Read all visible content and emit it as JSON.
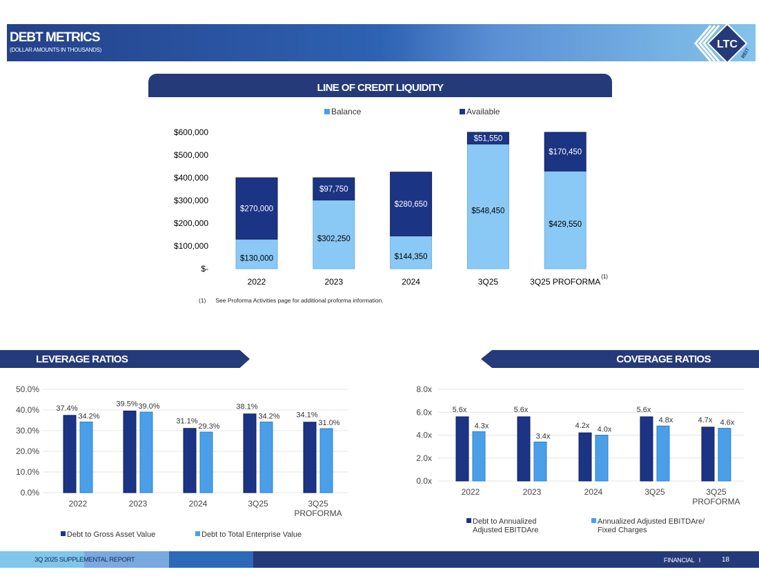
{
  "header": {
    "title": "DEBT METRICS",
    "subtitle": "(DOLLAR AMOUNTS IN THOUSANDS)",
    "logo_text": "LTC",
    "logo_sub": "REIT"
  },
  "footer": {
    "report": "3Q 2025 SUPPLEMENTAL REPORT",
    "section": "FINANCIAL",
    "separator": "I",
    "page": "18"
  },
  "colors": {
    "navy": "#253a78",
    "dark_bar": "#1c3484",
    "light_bar": "#4a9fe8"
  },
  "chart_data": [
    {
      "id": "loc",
      "type": "bar",
      "stacked": true,
      "title": "LINE OF CREDIT LIQUIDITY",
      "categories": [
        "2022",
        "2023",
        "2024",
        "3Q25",
        "3Q25 PROFORMA"
      ],
      "category_superscript": {
        "3Q25 PROFORMA": "(1)"
      },
      "series": [
        {
          "name": "Balance",
          "values": [
            130000,
            302250,
            144350,
            548450,
            429550
          ],
          "labels": [
            "$130,000",
            "$302,250",
            "$144,350",
            "$548,450",
            "$429,550"
          ],
          "color": "#8ac9f5"
        },
        {
          "name": "Available",
          "values": [
            270000,
            97750,
            280650,
            51550,
            170450
          ],
          "labels": [
            "$270,000",
            "$97,750",
            "$280,650",
            "$51,550",
            "$170,450"
          ],
          "color": "#1c3484"
        }
      ],
      "yticks": [
        "$-",
        "$100,000",
        "$200,000",
        "$300,000",
        "$400,000",
        "$500,000",
        "$600,000"
      ],
      "ylim": [
        0,
        600000
      ],
      "legend": "top",
      "grid": false,
      "footnote": {
        "marker": "(1)",
        "text": "See Proforma Activities page for additional proforma information."
      }
    },
    {
      "id": "lev",
      "type": "bar",
      "title": "LEVERAGE RATIOS",
      "categories": [
        "2022",
        "2023",
        "2024",
        "3Q25",
        "3Q25\nPROFORMA"
      ],
      "series": [
        {
          "name": "Debt to Gross Asset Value",
          "values": [
            37.4,
            39.5,
            31.1,
            38.1,
            34.1
          ],
          "labels": [
            "37.4%",
            "39.5%",
            "31.1%",
            "38.1%",
            "34.1%"
          ],
          "color": "#1c3484"
        },
        {
          "name": "Debt to Total Enterprise Value",
          "values": [
            34.2,
            39.0,
            29.3,
            34.2,
            31.0
          ],
          "labels": [
            "34.2%",
            "39.0%",
            "29.3%",
            "34.2%",
            "31.0%"
          ],
          "color": "#4a9fe8"
        }
      ],
      "yticks": [
        "0.0%",
        "10.0%",
        "20.0%",
        "30.0%",
        "40.0%",
        "50.0%"
      ],
      "ylim": [
        0,
        50
      ],
      "legend": "bottom",
      "grid": true
    },
    {
      "id": "cov",
      "type": "bar",
      "title": "COVERAGE RATIOS",
      "categories": [
        "2022",
        "2023",
        "2024",
        "3Q25",
        "3Q25\nPROFORMA"
      ],
      "series": [
        {
          "name": "Debt to Annualized\nAdjusted EBITDAre",
          "values": [
            5.6,
            5.6,
            4.2,
            5.6,
            4.7
          ],
          "labels": [
            "5.6x",
            "5.6x",
            "4.2x",
            "5.6x",
            "4.7x"
          ],
          "color": "#1c3484"
        },
        {
          "name": "Annualized Adjusted EBITDAre/\nFixed Charges",
          "values": [
            4.3,
            3.4,
            4.0,
            4.8,
            4.6
          ],
          "labels": [
            "4.3x",
            "3.4x",
            "4.0x",
            "4.8x",
            "4.6x"
          ],
          "color": "#4a9fe8"
        }
      ],
      "yticks": [
        "0.0x",
        "2.0x",
        "4.0x",
        "6.0x",
        "8.0x"
      ],
      "ylim": [
        0,
        8
      ],
      "legend": "bottom",
      "grid": true
    }
  ]
}
